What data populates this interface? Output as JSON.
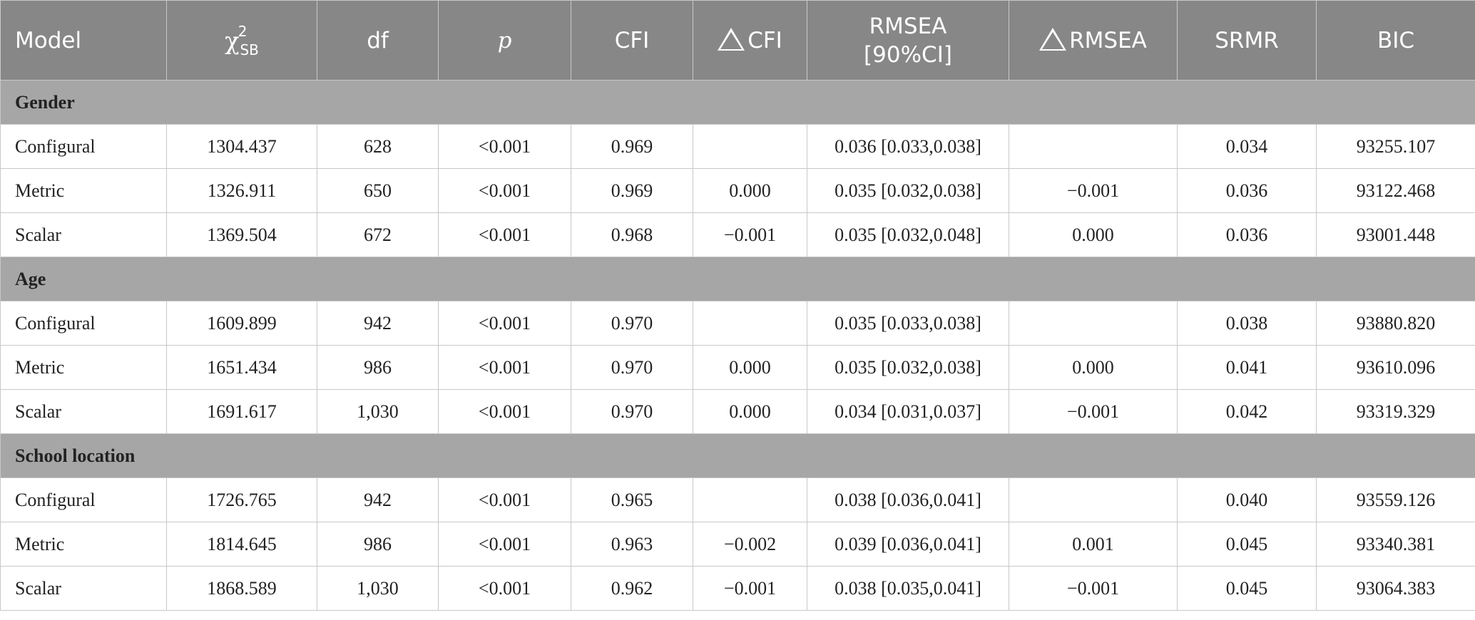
{
  "table": {
    "columns": [
      {
        "key": "model",
        "label": "Model"
      },
      {
        "key": "chi2",
        "label_main": "χ",
        "label_sup": "2",
        "label_sub": "SB"
      },
      {
        "key": "df",
        "label": "df"
      },
      {
        "key": "p",
        "label": "p"
      },
      {
        "key": "cfi",
        "label": "CFI"
      },
      {
        "key": "dcfi",
        "label": "CFI"
      },
      {
        "key": "rmsea",
        "label_line1": "RMSEA",
        "label_line2": "[90%CI]"
      },
      {
        "key": "drmsea",
        "label": "RMSEA"
      },
      {
        "key": "srmr",
        "label": "SRMR"
      },
      {
        "key": "bic",
        "label": "BIC"
      }
    ],
    "groups": [
      {
        "name": "Gender",
        "rows": [
          {
            "model": "Configural",
            "chi2": "1304.437",
            "df": "628",
            "p": "<0.001",
            "cfi": "0.969",
            "dcfi": "",
            "rmsea": "0.036 [0.033,0.038]",
            "drmsea": "",
            "srmr": "0.034",
            "bic": "93255.107"
          },
          {
            "model": "Metric",
            "chi2": "1326.911",
            "df": "650",
            "p": "<0.001",
            "cfi": "0.969",
            "dcfi": "0.000",
            "rmsea": "0.035 [0.032,0.038]",
            "drmsea": "−0.001",
            "srmr": "0.036",
            "bic": "93122.468"
          },
          {
            "model": "Scalar",
            "chi2": "1369.504",
            "df": "672",
            "p": "<0.001",
            "cfi": "0.968",
            "dcfi": "−0.001",
            "rmsea": "0.035 [0.032,0.048]",
            "drmsea": "0.000",
            "srmr": "0.036",
            "bic": "93001.448"
          }
        ]
      },
      {
        "name": "Age",
        "rows": [
          {
            "model": "Configural",
            "chi2": "1609.899",
            "df": "942",
            "p": "<0.001",
            "cfi": "0.970",
            "dcfi": "",
            "rmsea": "0.035 [0.033,0.038]",
            "drmsea": "",
            "srmr": "0.038",
            "bic": "93880.820"
          },
          {
            "model": "Metric",
            "chi2": "1651.434",
            "df": "986",
            "p": "<0.001",
            "cfi": "0.970",
            "dcfi": "0.000",
            "rmsea": "0.035 [0.032,0.038]",
            "drmsea": "0.000",
            "srmr": "0.041",
            "bic": "93610.096"
          },
          {
            "model": "Scalar",
            "chi2": "1691.617",
            "df": "1,030",
            "p": "<0.001",
            "cfi": "0.970",
            "dcfi": "0.000",
            "rmsea": "0.034 [0.031,0.037]",
            "drmsea": "−0.001",
            "srmr": "0.042",
            "bic": "93319.329"
          }
        ]
      },
      {
        "name": "School location",
        "rows": [
          {
            "model": "Configural",
            "chi2": "1726.765",
            "df": "942",
            "p": "<0.001",
            "cfi": "0.965",
            "dcfi": "",
            "rmsea": "0.038 [0.036,0.041]",
            "drmsea": "",
            "srmr": "0.040",
            "bic": "93559.126"
          },
          {
            "model": "Metric",
            "chi2": "1814.645",
            "df": "986",
            "p": "<0.001",
            "cfi": "0.963",
            "dcfi": "−0.002",
            "rmsea": "0.039 [0.036,0.041]",
            "drmsea": "0.001",
            "srmr": "0.045",
            "bic": "93340.381"
          },
          {
            "model": "Scalar",
            "chi2": "1868.589",
            "df": "1,030",
            "p": "<0.001",
            "cfi": "0.962",
            "dcfi": "−0.001",
            "rmsea": "0.038 [0.035,0.041]",
            "drmsea": "−0.001",
            "srmr": "0.045",
            "bic": "93064.383"
          }
        ]
      }
    ]
  }
}
